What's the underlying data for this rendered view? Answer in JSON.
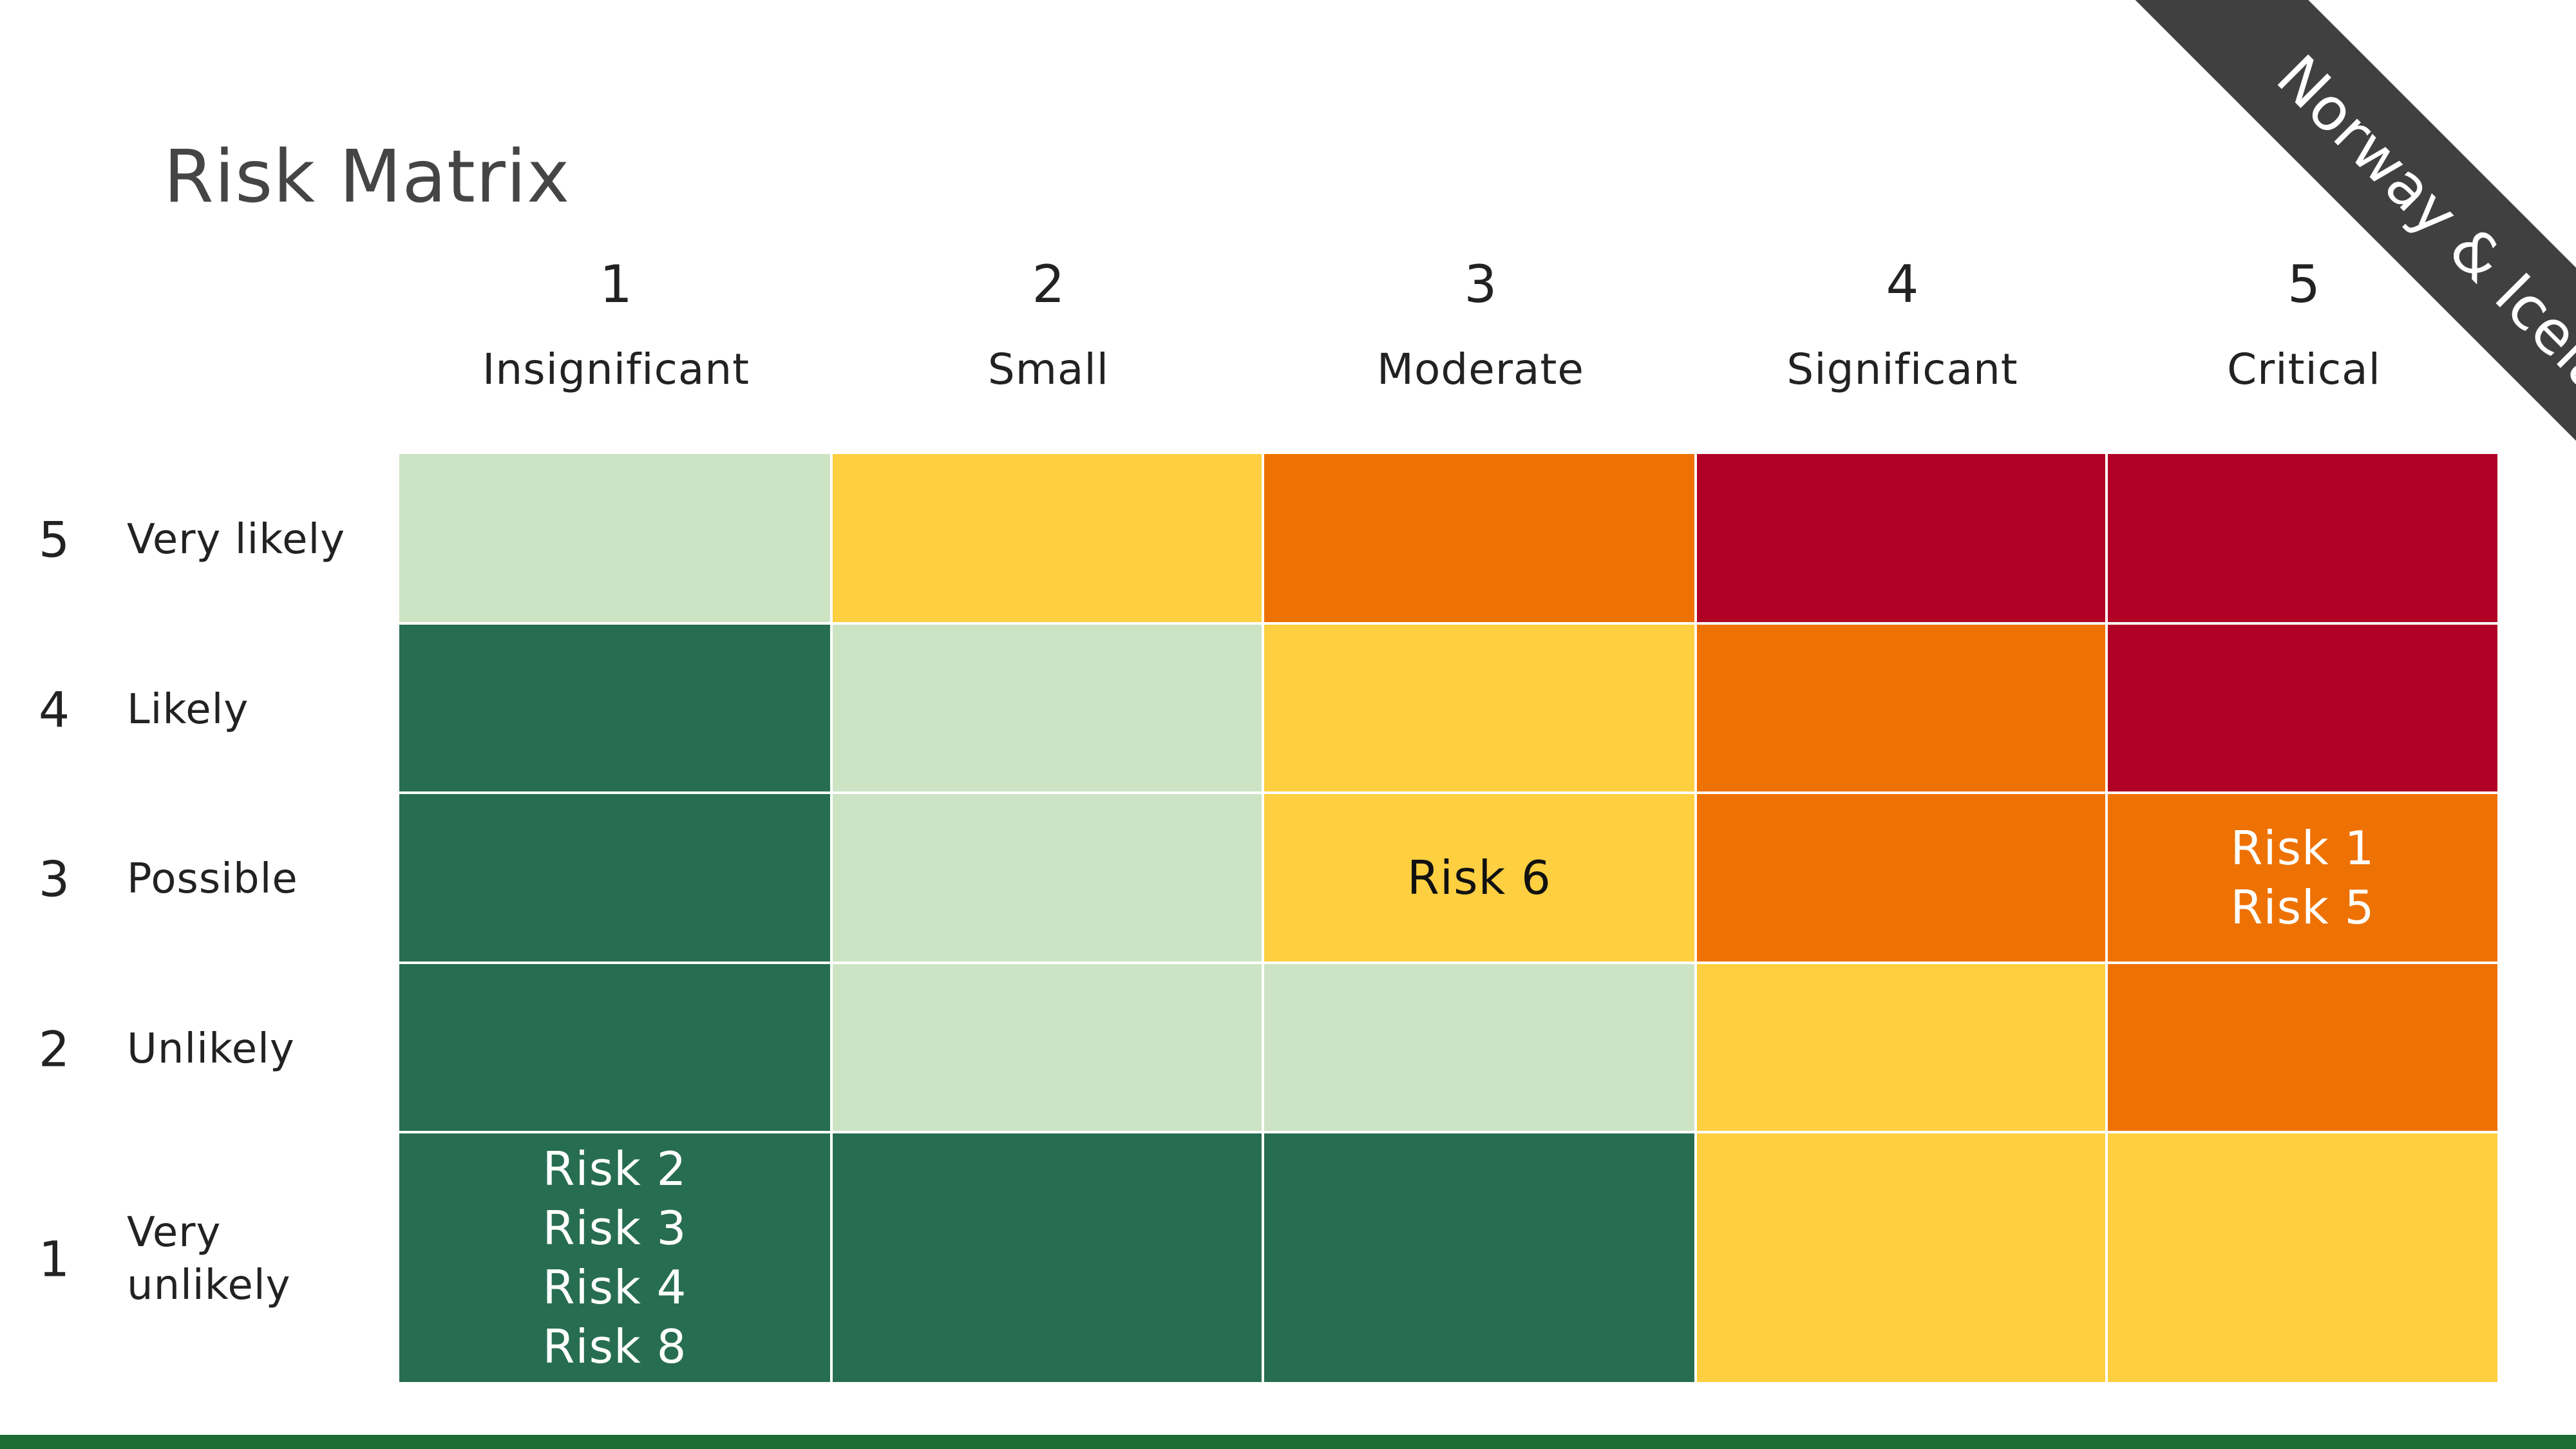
{
  "title": "Risk Matrix",
  "ribbon": "Norway & Iceland",
  "colors": {
    "light_green": "#cde4c4",
    "dark_green": "#276d52",
    "yellow": "#fdcf41",
    "orange": "#ee7203",
    "red": "#b00024",
    "ribbon": "#404040",
    "bottom_bar": "#1d6b35"
  },
  "columns": [
    {
      "num": "1",
      "label": "Insignificant"
    },
    {
      "num": "2",
      "label": "Small"
    },
    {
      "num": "3",
      "label": "Moderate"
    },
    {
      "num": "4",
      "label": "Significant"
    },
    {
      "num": "5",
      "label": "Critical"
    }
  ],
  "rows": [
    {
      "num": "5",
      "label": "Very likely",
      "cells": [
        {
          "color": "light_green",
          "risks": []
        },
        {
          "color": "yellow",
          "risks": []
        },
        {
          "color": "orange",
          "risks": []
        },
        {
          "color": "red",
          "risks": []
        },
        {
          "color": "red",
          "risks": []
        }
      ]
    },
    {
      "num": "4",
      "label": "Likely",
      "cells": [
        {
          "color": "dark_green",
          "risks": []
        },
        {
          "color": "light_green",
          "risks": []
        },
        {
          "color": "yellow",
          "risks": []
        },
        {
          "color": "orange",
          "risks": []
        },
        {
          "color": "red",
          "risks": []
        }
      ]
    },
    {
      "num": "3",
      "label": "Possible",
      "cells": [
        {
          "color": "dark_green",
          "risks": []
        },
        {
          "color": "light_green",
          "risks": []
        },
        {
          "color": "yellow",
          "risks": [
            "Risk 6"
          ]
        },
        {
          "color": "orange",
          "risks": []
        },
        {
          "color": "orange",
          "risks": [
            "Risk 1",
            "Risk 5"
          ]
        }
      ]
    },
    {
      "num": "2",
      "label": "Unlikely",
      "cells": [
        {
          "color": "dark_green",
          "risks": []
        },
        {
          "color": "light_green",
          "risks": []
        },
        {
          "color": "light_green",
          "risks": []
        },
        {
          "color": "yellow",
          "risks": []
        },
        {
          "color": "orange",
          "risks": []
        }
      ]
    },
    {
      "num": "1",
      "label": "Very unlikely",
      "label_lines": [
        "Very",
        "unlikely"
      ],
      "cells": [
        {
          "color": "dark_green",
          "risks": [
            "Risk 2",
            "Risk 3",
            "Risk 4",
            "Risk 8"
          ]
        },
        {
          "color": "dark_green",
          "risks": []
        },
        {
          "color": "dark_green",
          "risks": []
        },
        {
          "color": "yellow",
          "risks": []
        },
        {
          "color": "yellow",
          "risks": []
        }
      ]
    }
  ]
}
